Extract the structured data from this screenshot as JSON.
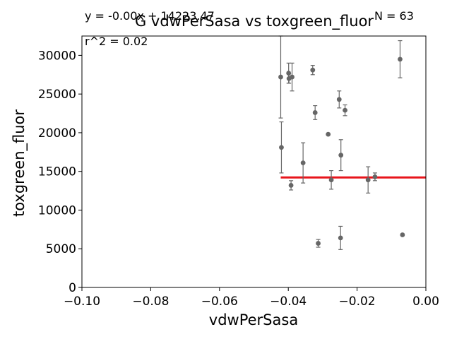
{
  "chart_data": {
    "type": "scatter",
    "title": "G vdwPerSasa vs toxgreen_fluor",
    "xlabel": "vdwPerSasa",
    "ylabel": "toxgreen_fluor",
    "xlim": [
      -0.1,
      0.0
    ],
    "ylim": [
      0,
      32500
    ],
    "xticks": [
      "−0.10",
      "−0.08",
      "−0.06",
      "−0.04",
      "−0.02",
      "0.00"
    ],
    "yticks": [
      "0",
      "5000",
      "10000",
      "15000",
      "20000",
      "25000",
      "30000"
    ],
    "grid": false,
    "annotations": {
      "equation": "y = -0.00x + 14223.47",
      "r2": "r^2 = 0.02",
      "n": "N = 63"
    },
    "points": [
      {
        "x": -0.0422,
        "y": 27200,
        "err": 5300
      },
      {
        "x": -0.042,
        "y": 18100,
        "err": 3300
      },
      {
        "x": -0.0399,
        "y": 27700,
        "err": 1300
      },
      {
        "x": -0.0398,
        "y": 27000,
        "err": 600
      },
      {
        "x": -0.0392,
        "y": 13200,
        "err": 600
      },
      {
        "x": -0.0389,
        "y": 27200,
        "err": 1800
      },
      {
        "x": -0.0357,
        "y": 16100,
        "err": 2600
      },
      {
        "x": -0.0329,
        "y": 28100,
        "err": 600
      },
      {
        "x": -0.0322,
        "y": 22600,
        "err": 900
      },
      {
        "x": -0.0313,
        "y": 5700,
        "err": 500
      },
      {
        "x": -0.0284,
        "y": 19800,
        "err": 0
      },
      {
        "x": -0.0275,
        "y": 13900,
        "err": 1200
      },
      {
        "x": -0.0252,
        "y": 24300,
        "err": 1100
      },
      {
        "x": -0.0248,
        "y": 6400,
        "err": 1500
      },
      {
        "x": -0.0247,
        "y": 17100,
        "err": 2000
      },
      {
        "x": -0.0235,
        "y": 22900,
        "err": 700
      },
      {
        "x": -0.0168,
        "y": 13900,
        "err": 1700
      },
      {
        "x": -0.0148,
        "y": 14300,
        "err": 500
      },
      {
        "x": -0.0075,
        "y": 29500,
        "err": 2400
      },
      {
        "x": -0.0068,
        "y": 6800,
        "err": 0
      }
    ],
    "fit_line": {
      "x": [
        -0.0422,
        0.0
      ],
      "y": [
        14223.47,
        14223.47
      ]
    },
    "colors": {
      "points": "#666666",
      "fit_line": "#e8151b",
      "axes": "#000000"
    }
  }
}
